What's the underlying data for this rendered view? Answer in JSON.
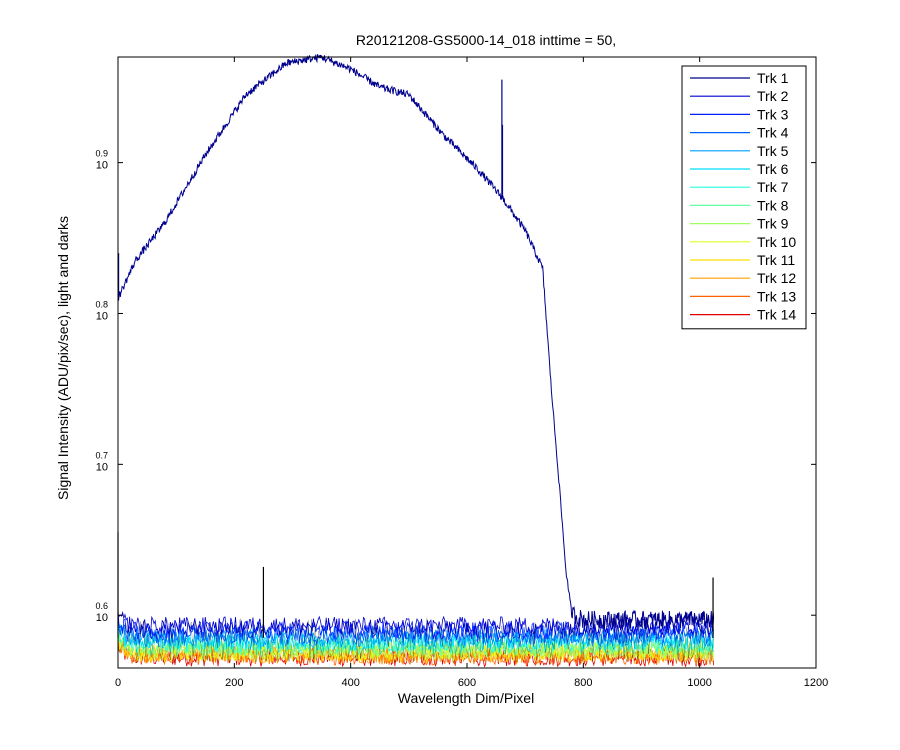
{
  "chart_data": {
    "type": "line",
    "title": "R20121208-GS5000-14_018 inttime = 50,",
    "xlabel": "Wavelength Dim/Pixel",
    "ylabel": "Signal Intensity (ADU/pix/sec), light and darks",
    "xlim": [
      0,
      1200
    ],
    "ylim_log10": [
      0.565,
      0.97
    ],
    "y_scale": "log",
    "x_ticks": [
      "0",
      "200",
      "400",
      "600",
      "800",
      "1000",
      "1200"
    ],
    "y_ticks": [
      {
        "base": "10",
        "exp": "0.6",
        "log10": 0.6
      },
      {
        "base": "10",
        "exp": "0.7",
        "log10": 0.7
      },
      {
        "base": "10",
        "exp": "0.8",
        "log10": 0.8
      },
      {
        "base": "10",
        "exp": "0.9",
        "log10": 0.9
      }
    ],
    "grid": false,
    "legend_position": "top-right",
    "pixel_range": [
      0,
      1024
    ],
    "series": [
      {
        "name": "Trk 1",
        "color": "#00008F",
        "shape": "light",
        "profile_x": [
          0,
          30,
          80,
          150,
          220,
          290,
          350,
          400,
          450,
          500,
          560,
          620,
          660,
          700,
          730,
          745,
          760,
          770,
          780,
          800,
          1024
        ],
        "profile_log10": [
          0.81,
          0.835,
          0.86,
          0.905,
          0.945,
          0.966,
          0.97,
          0.962,
          0.95,
          0.945,
          0.918,
          0.895,
          0.877,
          0.855,
          0.83,
          0.75,
          0.68,
          0.63,
          0.601,
          0.597,
          0.597
        ],
        "spikes": [
          {
            "x": 1,
            "log10": 0.84
          },
          {
            "x": 660,
            "log10": 0.955
          },
          {
            "x": 661,
            "log10": 0.925
          }
        ]
      },
      {
        "name": "Trk 2",
        "color": "#0000CF",
        "shape": "dark",
        "level_log10": 0.593
      },
      {
        "name": "Trk 3",
        "color": "#0020FF",
        "shape": "dark",
        "level_log10": 0.59
      },
      {
        "name": "Trk 4",
        "color": "#0060FF",
        "shape": "dark",
        "level_log10": 0.587
      },
      {
        "name": "Trk 5",
        "color": "#00A0FF",
        "shape": "dark",
        "level_log10": 0.585
      },
      {
        "name": "Trk 6",
        "color": "#00DFFF",
        "shape": "dark",
        "level_log10": 0.583
      },
      {
        "name": "Trk 7",
        "color": "#20FFDF",
        "shape": "dark",
        "level_log10": 0.581
      },
      {
        "name": "Trk 8",
        "color": "#60FF9F",
        "shape": "dark",
        "level_log10": 0.579
      },
      {
        "name": "Trk 9",
        "color": "#9FFF60",
        "shape": "dark",
        "level_log10": 0.577
      },
      {
        "name": "Trk 10",
        "color": "#DFFF20",
        "shape": "dark",
        "level_log10": 0.576
      },
      {
        "name": "Trk 11",
        "color": "#FFDF00",
        "shape": "dark",
        "level_log10": 0.575
      },
      {
        "name": "Trk 12",
        "color": "#FF9F00",
        "shape": "dark",
        "level_log10": 0.574
      },
      {
        "name": "Trk 13",
        "color": "#FF6000",
        "shape": "dark",
        "level_log10": 0.573
      },
      {
        "name": "Trk 14",
        "color": "#DF0000",
        "shape": "dark",
        "level_log10": 0.572
      }
    ],
    "extra_spikes": [
      {
        "x": 250,
        "log10": 0.632
      },
      {
        "x": 0,
        "log10": 0.655
      },
      {
        "x": 1023,
        "log10": 0.625
      }
    ],
    "dark_noise_amplitude_log10": 0.006
  }
}
